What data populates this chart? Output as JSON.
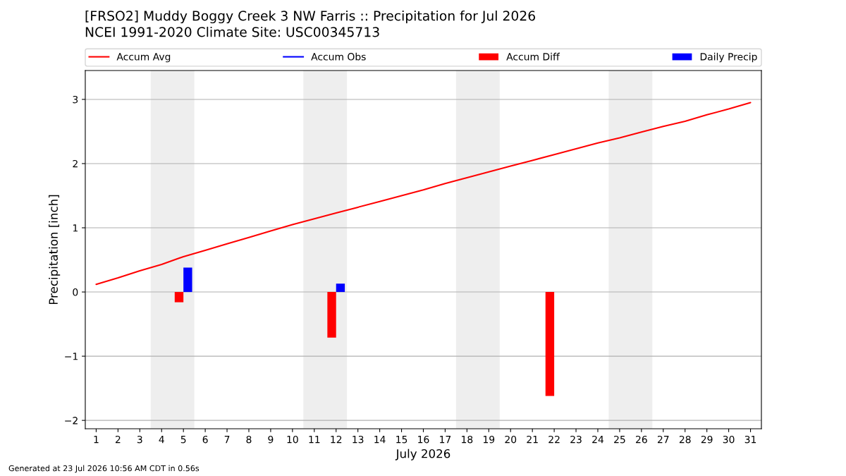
{
  "chart_data": {
    "type": "line",
    "title": "[FRSO2] Muddy Boggy Creek 3 NW Farris :: Precipitation for Jul 2026",
    "subtitle": "NCEI 1991-2020 Climate Site: USC00345713",
    "xlabel": "July 2026",
    "ylabel": "Precipitation [inch]",
    "annotations": [
      "Generated at 23 Jul 2026 10:56 AM CDT in 0.56s"
    ],
    "x": [
      1,
      2,
      3,
      4,
      5,
      6,
      7,
      8,
      9,
      10,
      11,
      12,
      13,
      14,
      15,
      16,
      17,
      18,
      19,
      20,
      21,
      22,
      23,
      24,
      25,
      26,
      27,
      28,
      29,
      30,
      31
    ],
    "series": [
      {
        "name": "Accum Avg",
        "color": "#ff0000",
        "values": [
          0.12,
          0.22,
          0.33,
          0.43,
          0.55,
          0.65,
          0.75,
          0.85,
          0.95,
          1.05,
          1.14,
          1.23,
          1.32,
          1.41,
          1.5,
          1.59,
          1.69,
          1.78,
          1.87,
          1.96,
          2.05,
          2.14,
          2.23,
          2.32,
          2.4,
          2.49,
          2.58,
          2.66,
          2.76,
          2.85,
          2.95
        ]
      },
      {
        "name": "Accum Obs",
        "color": "#0000ff",
        "values": [
          null,
          null,
          null,
          null,
          null,
          null,
          null,
          null,
          null,
          null,
          null,
          null,
          null,
          null,
          null,
          null,
          null,
          null,
          null,
          null,
          null,
          null,
          null,
          null,
          null,
          null,
          null,
          null,
          null,
          null,
          null
        ]
      },
      {
        "name": "Accum Diff",
        "type": "bar",
        "color": "#ff0000",
        "x": [
          5,
          12,
          22
        ],
        "values": [
          -0.16,
          -0.71,
          -1.62
        ]
      },
      {
        "name": "Daily Precip",
        "type": "bar",
        "color": "#0000ff",
        "x": [
          5,
          12
        ],
        "values": [
          0.38,
          0.13
        ]
      }
    ],
    "bands": [
      {
        "axis": "x",
        "from": 3.5,
        "to": 5.5,
        "color": "#eeeeee"
      },
      {
        "axis": "x",
        "from": 10.5,
        "to": 12.5,
        "color": "#eeeeee"
      },
      {
        "axis": "x",
        "from": 17.5,
        "to": 19.5,
        "color": "#eeeeee"
      },
      {
        "axis": "x",
        "from": 24.5,
        "to": 26.5,
        "color": "#eeeeee"
      }
    ],
    "xlim": [
      0.5,
      31.5
    ],
    "xticks": [
      1,
      2,
      3,
      4,
      5,
      6,
      7,
      8,
      9,
      10,
      11,
      12,
      13,
      14,
      15,
      16,
      17,
      18,
      19,
      20,
      21,
      22,
      23,
      24,
      25,
      26,
      27,
      28,
      29,
      30,
      31
    ],
    "ylim": [
      -2.13,
      3.45
    ],
    "yticks": [
      {
        "value": -2,
        "label": "−2"
      },
      {
        "value": -1,
        "label": "−1"
      },
      0,
      1,
      2,
      3
    ],
    "grid": "y",
    "legend": "top"
  }
}
